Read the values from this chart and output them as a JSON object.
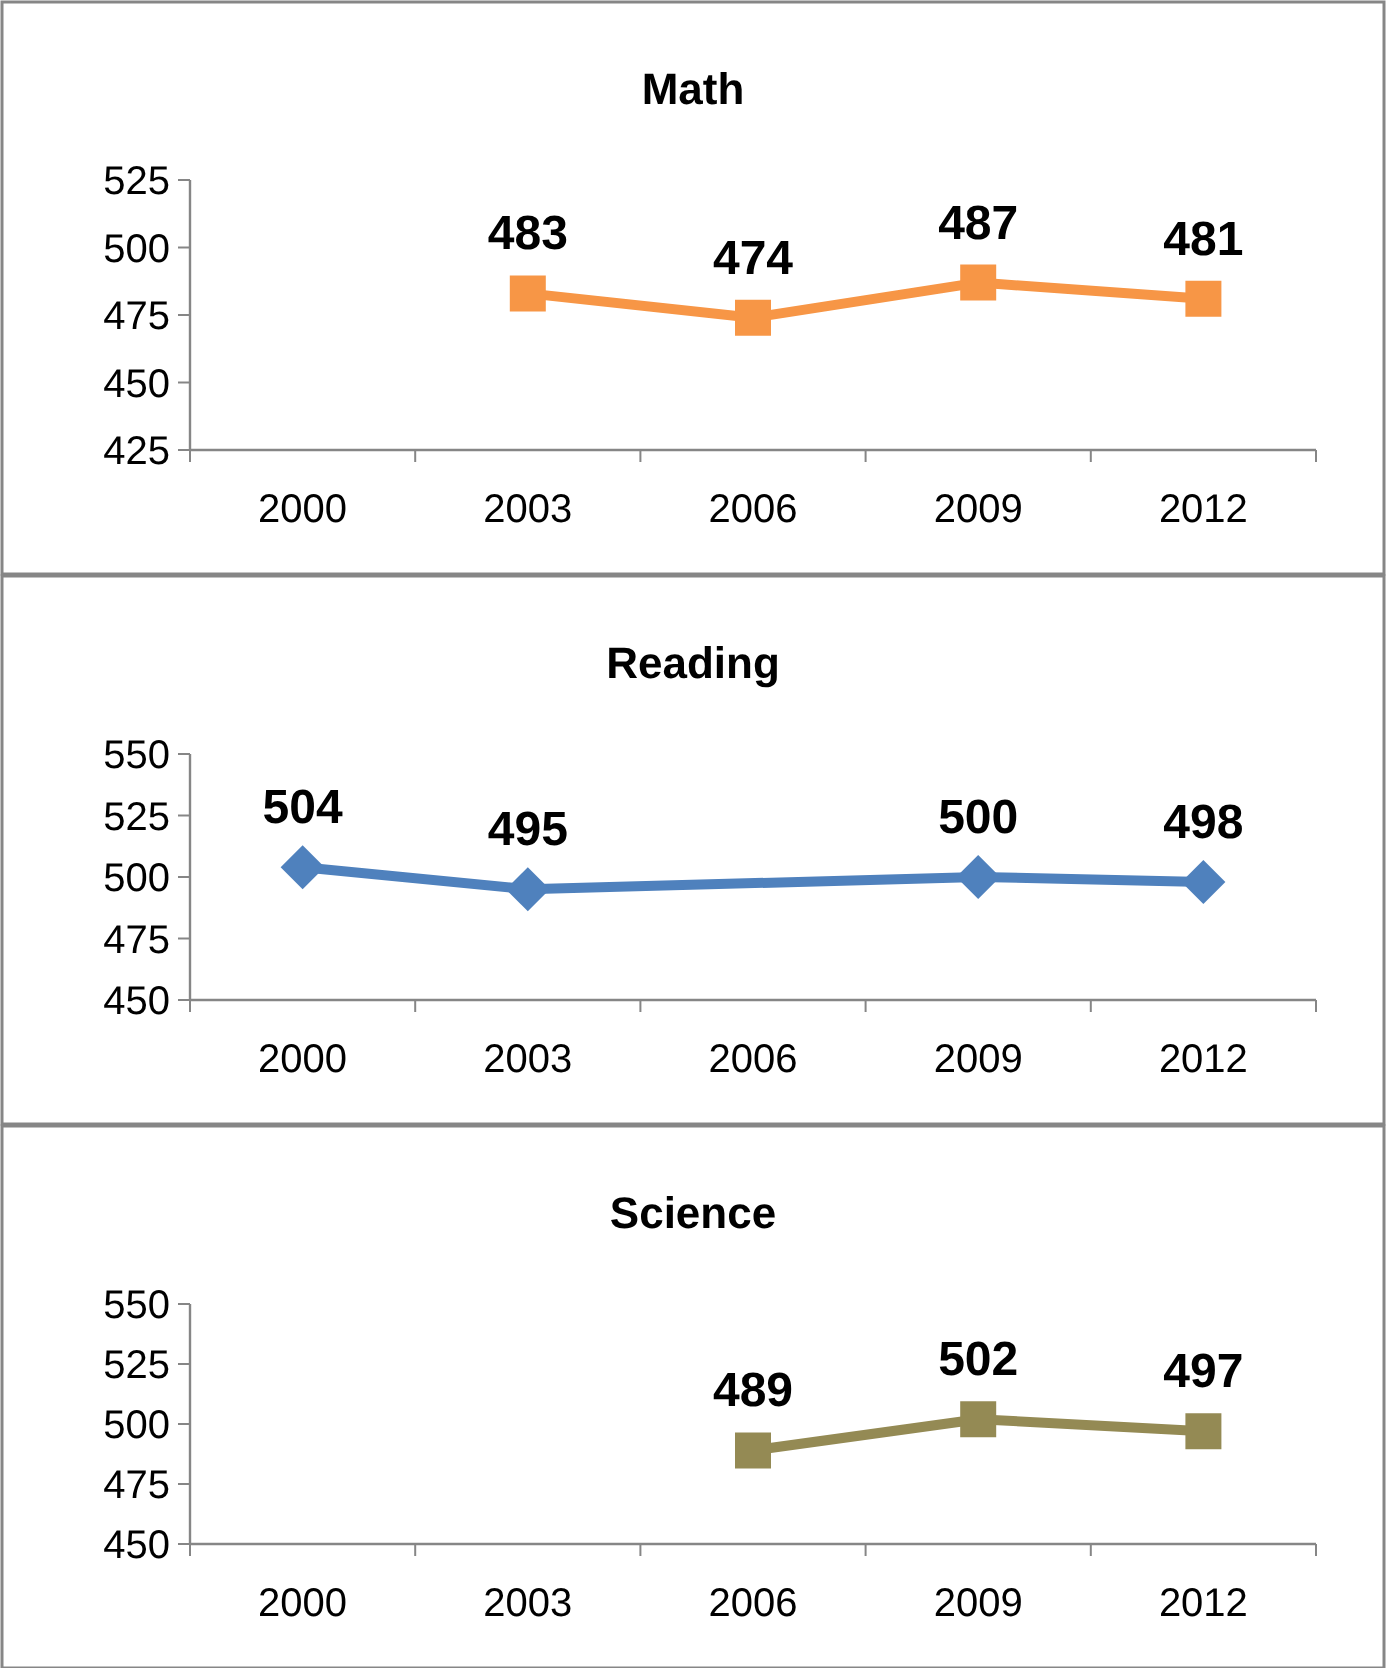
{
  "chart_data": [
    {
      "type": "line",
      "title": "Math",
      "categories": [
        "2000",
        "2003",
        "2006",
        "2009",
        "2012"
      ],
      "series": [
        {
          "color": "#f79646",
          "values": [
            null,
            483,
            474,
            487,
            481
          ],
          "marker": "square"
        }
      ],
      "ylim": [
        425,
        525
      ],
      "yticks": [
        425,
        450,
        475,
        500,
        525
      ],
      "data_labels": true,
      "grid": false
    },
    {
      "type": "line",
      "title": "Reading",
      "categories": [
        "2000",
        "2003",
        "2006",
        "2009",
        "2012"
      ],
      "series": [
        {
          "color": "#4f81bd",
          "values": [
            504,
            495,
            null,
            500,
            498
          ],
          "marker": "diamond"
        }
      ],
      "ylim": [
        450,
        550
      ],
      "yticks": [
        450,
        475,
        500,
        525,
        550
      ],
      "data_labels": true,
      "grid": false
    },
    {
      "type": "line",
      "title": "Science",
      "categories": [
        "2000",
        "2003",
        "2006",
        "2009",
        "2012"
      ],
      "series": [
        {
          "color": "#948a54",
          "values": [
            null,
            null,
            489,
            502,
            497
          ],
          "marker": "square"
        }
      ],
      "ylim": [
        450,
        550
      ],
      "yticks": [
        450,
        475,
        500,
        525,
        550
      ],
      "data_labels": true,
      "grid": false
    }
  ]
}
